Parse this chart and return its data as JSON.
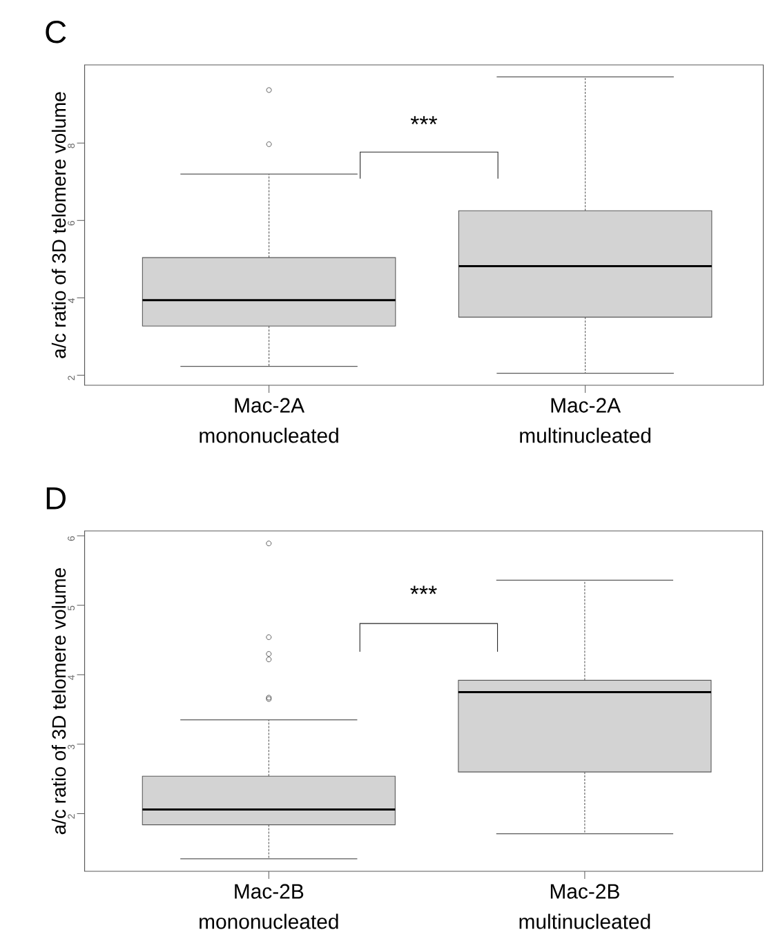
{
  "chart_data": [
    {
      "type": "box",
      "title": "C",
      "ylabel": "a/c ratio of 3D telomere volume",
      "categories": [
        "Mac-2A mononucleated",
        "Mac-2A multinucleated"
      ],
      "color": "#d3d3d3",
      "boxes": [
        {
          "low": 2.23,
          "q1": 3.27,
          "median": 3.94,
          "q3": 5.04,
          "high": 7.2,
          "outliers": [
            9.37,
            7.97
          ]
        },
        {
          "low": 2.05,
          "q1": 3.5,
          "median": 4.82,
          "q3": 6.25,
          "high": 9.71
        }
      ],
      "ylim": [
        1.74,
        10.02
      ],
      "yticks": [
        2,
        4,
        6,
        8
      ],
      "annotations": [
        "***"
      ]
    },
    {
      "type": "box",
      "title": "D",
      "ylabel": "a/c ratio of 3D telomere volume",
      "categories": [
        "Mac-2B mononucleated",
        "Mac-2B multinucleated"
      ],
      "color": "#d3d3d3",
      "boxes": [
        {
          "low": 1.35,
          "q1": 1.84,
          "median": 2.06,
          "q3": 2.54,
          "high": 3.35,
          "outliers": [
            5.89,
            4.54,
            4.3,
            4.22,
            3.67,
            3.65
          ]
        },
        {
          "low": 1.71,
          "q1": 2.6,
          "median": 3.75,
          "q3": 3.92,
          "high": 5.36
        }
      ],
      "ylim": [
        1.17,
        6.07
      ],
      "yticks": [
        2,
        3,
        4,
        5,
        6
      ],
      "annotations": [
        "***"
      ]
    }
  ]
}
